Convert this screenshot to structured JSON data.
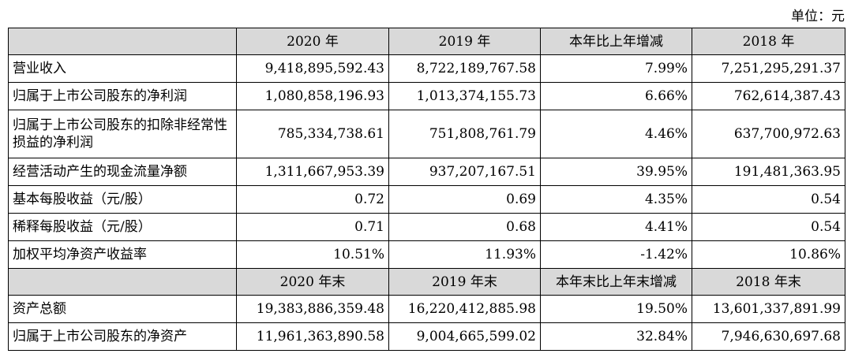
{
  "unit_label": "单位：元",
  "headers": [
    [
      "",
      "2020 年",
      "2019 年",
      "本年比上年增减",
      "2018 年"
    ],
    [
      "",
      "2020 年末",
      "2019 年末",
      "本年末比上年末增减",
      "2018 年末"
    ]
  ],
  "rows_a": [
    [
      "营业收入",
      "9,418,895,592.43",
      "8,722,189,767.58",
      "7.99%",
      "7,251,295,291.37"
    ],
    [
      "归属于上市公司股东的净利润",
      "1,080,858,196.93",
      "1,013,374,155.73",
      "6.66%",
      "762,614,387.43"
    ],
    [
      "归属于上市公司股东的扣除非经常性损益的净利润",
      "785,334,738.61",
      "751,808,761.79",
      "4.46%",
      "637,700,972.63"
    ],
    [
      "经营活动产生的现金流量净额",
      "1,311,667,953.39",
      "937,207,167.51",
      "39.95%",
      "191,481,363.95"
    ],
    [
      "基本每股收益（元/股）",
      "0.72",
      "0.69",
      "4.35%",
      "0.54"
    ],
    [
      "稀释每股收益（元/股）",
      "0.71",
      "0.68",
      "4.41%",
      "0.54"
    ],
    [
      "加权平均净资产收益率",
      "10.51%",
      "11.93%",
      "-1.42%",
      "10.86%"
    ]
  ],
  "rows_b": [
    [
      "资产总额",
      "19,383,886,359.48",
      "16,220,412,885.98",
      "19.50%",
      "13,601,337,891.99"
    ],
    [
      "归属于上市公司股东的净资产",
      "11,961,363,890.58",
      "9,004,665,599.02",
      "32.84%",
      "7,946,630,697.68"
    ]
  ]
}
